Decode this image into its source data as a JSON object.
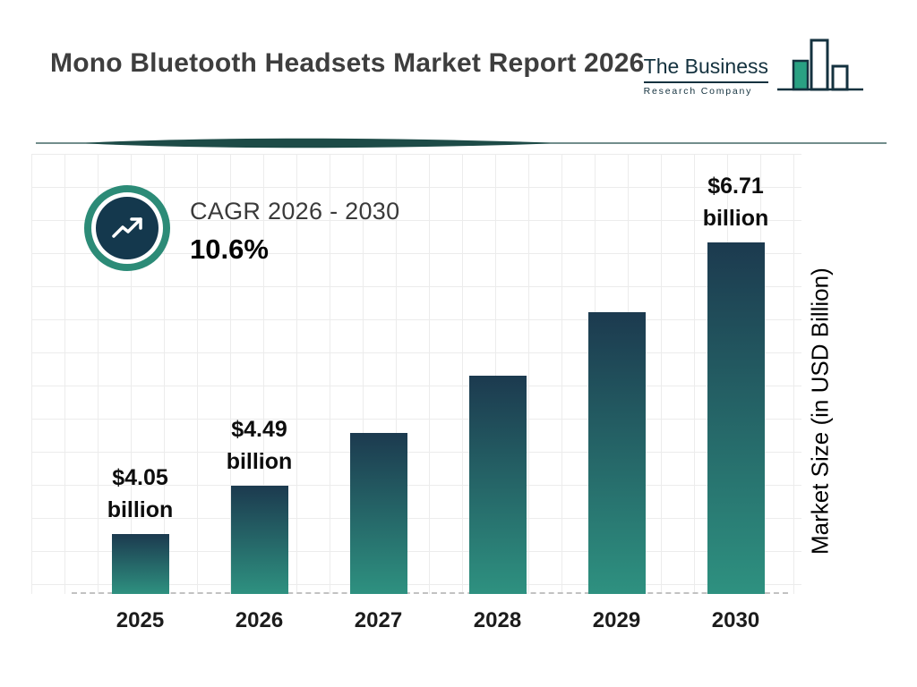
{
  "header": {
    "title": "Mono Bluetooth Headsets Market Report 2026",
    "logo": {
      "line1": "The Business",
      "line2": "Research Company"
    }
  },
  "cagr": {
    "label": "CAGR 2026 - 2030",
    "value": "10.6%"
  },
  "chart_data": {
    "type": "bar",
    "title": "Mono Bluetooth Headsets Market Report 2026",
    "categories": [
      "2025",
      "2026",
      "2027",
      "2028",
      "2029",
      "2030"
    ],
    "values": [
      4.05,
      4.49,
      4.97,
      5.49,
      6.07,
      6.71
    ],
    "value_labels": [
      {
        "amount": "$4.05",
        "unit": "billion"
      },
      {
        "amount": "$4.49",
        "unit": "billion"
      },
      null,
      null,
      null,
      {
        "amount": "$6.71",
        "unit": "billion"
      }
    ],
    "xlabel": "",
    "ylabel": "Market Size (in USD Billion)",
    "ylim": [
      3.5,
      7.5
    ],
    "grid": true,
    "legend": false,
    "cagr_label": "CAGR 2026 - 2030",
    "cagr_value": "10.6%",
    "bar_gradient": [
      "#1c3a4f",
      "#2e9180"
    ],
    "accent_teal": "#2c8b77",
    "accent_navy": "#14384d"
  }
}
